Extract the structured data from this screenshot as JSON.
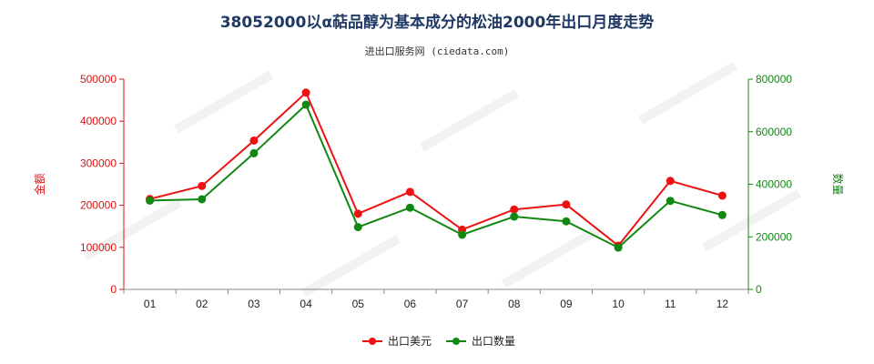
{
  "header": {
    "title": "38052000以α萜品醇为基本成分的松油2000年出口月度走势",
    "source": "进出口服务网 (ciedata.com)"
  },
  "colors": {
    "value_series": "#ee1111",
    "quantity_series": "#118811",
    "left_axis": "#dd1111",
    "right_axis": "#118811"
  },
  "chart_data": {
    "type": "line",
    "categories": [
      "01",
      "02",
      "03",
      "04",
      "05",
      "06",
      "07",
      "08",
      "09",
      "10",
      "11",
      "12"
    ],
    "y_left": {
      "label": "金额",
      "lim": [
        0,
        500000
      ],
      "ticks": [
        "0",
        "100000",
        "200000",
        "300000",
        "400000",
        "500000"
      ]
    },
    "y_right": {
      "label": "数量",
      "lim": [
        0,
        800000
      ],
      "ticks": [
        "0",
        "200000",
        "400000",
        "600000",
        "800000"
      ]
    },
    "series": [
      {
        "name": "出口美元",
        "axis": "left",
        "values": [
          215000,
          246000,
          354000,
          468000,
          180000,
          232000,
          142000,
          190000,
          202000,
          104000,
          258000,
          223000
        ]
      },
      {
        "name": "出口数量",
        "axis": "right",
        "values": [
          338000,
          343000,
          518000,
          703000,
          237000,
          311000,
          208000,
          277000,
          259000,
          159000,
          337000,
          283000
        ]
      }
    ],
    "legend_position": "bottom",
    "grid": false
  }
}
